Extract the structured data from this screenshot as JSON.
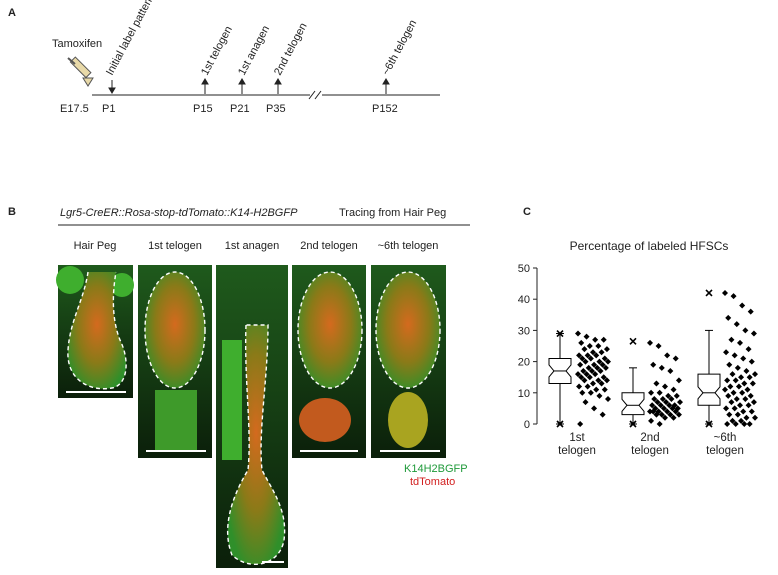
{
  "panel_a": {
    "label": "A",
    "drug": "Tamoxifen",
    "times": [
      "E17.5",
      "P1",
      "P15",
      "P21",
      "P35",
      "P152"
    ],
    "events": [
      "Initial label pattern",
      "1st telogen",
      "1st anagen",
      "2nd telogen",
      "~6th telogen"
    ]
  },
  "panel_b": {
    "label": "B",
    "genotype": "Lgr5-CreER::Rosa-stop-tdTomato::K14-H2BGFP",
    "subtitle": "Tracing from Hair Peg",
    "columns": [
      "Hair Peg",
      "1st telogen",
      "1st anagen",
      "2nd telogen",
      "~6th telogen"
    ],
    "legend": [
      "K14H2BGFP",
      "tdTomato"
    ]
  },
  "panel_c": {
    "label": "C"
  },
  "chart_data": {
    "type": "box",
    "title": "Percentage of labeled HFSCs",
    "categories": [
      "1st telogen",
      "2nd telogen",
      "~6th telogen"
    ],
    "ylim": [
      0,
      50
    ],
    "yticks": [
      0,
      10,
      20,
      30,
      40,
      50
    ],
    "boxes": [
      {
        "min": 0,
        "q1": 13,
        "median": 17,
        "q3": 21,
        "max": 29,
        "outer_high": 29,
        "outer_low": 0
      },
      {
        "min": 0,
        "q1": 3,
        "median": 6,
        "q3": 10,
        "max": 18,
        "outer_high": 26.5,
        "outer_low": 0
      },
      {
        "min": 0,
        "q1": 6,
        "median": 10,
        "q3": 16,
        "max": 30,
        "outer_high": 42,
        "outer_low": 0
      }
    ],
    "points": [
      [
        29,
        28,
        27,
        27,
        26,
        25,
        25,
        24,
        24,
        23,
        23,
        22,
        22,
        22,
        21,
        21,
        21,
        20,
        20,
        20,
        19,
        19,
        19,
        18,
        18,
        18,
        17,
        17,
        17,
        16,
        16,
        16,
        15,
        15,
        15,
        14,
        14,
        14,
        13,
        13,
        12,
        12,
        11,
        11,
        10,
        10,
        9,
        8,
        7,
        5,
        3,
        0
      ],
      [
        26,
        25,
        22,
        21,
        19,
        18,
        17,
        14,
        13,
        12,
        11,
        10,
        10,
        9,
        9,
        8,
        8,
        8,
        7,
        7,
        7,
        6,
        6,
        6,
        6,
        5,
        5,
        5,
        5,
        4,
        4,
        4,
        4,
        4,
        3,
        3,
        3,
        3,
        2,
        2,
        1,
        0
      ],
      [
        42,
        41,
        38,
        36,
        34,
        32,
        30,
        29,
        27,
        26,
        24,
        23,
        22,
        21,
        20,
        19,
        18,
        17,
        16,
        16,
        15,
        15,
        14,
        14,
        13,
        13,
        12,
        12,
        11,
        11,
        10,
        10,
        9,
        9,
        8,
        8,
        7,
        7,
        6,
        6,
        5,
        5,
        4,
        4,
        3,
        3,
        2,
        2,
        1,
        1,
        0,
        0,
        0,
        0
      ]
    ],
    "color": "#000000"
  }
}
